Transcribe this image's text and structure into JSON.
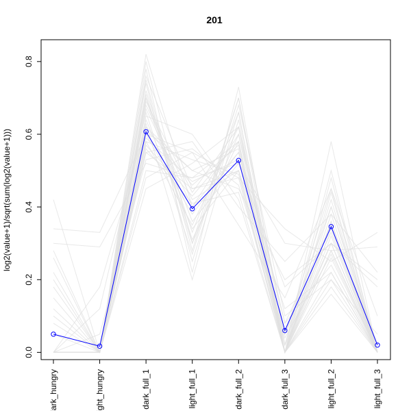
{
  "chart_data": {
    "type": "line",
    "title": "201",
    "xlabel": "",
    "ylabel": "log2(value+1)/sqrt(sum(log2(value+1)))",
    "categories": [
      "dark_hungry",
      "light_hungry",
      "dark_full_1",
      "light_full_1",
      "dark_full_2",
      "dark_full_3",
      "light_full_2",
      "light_full_3"
    ],
    "ylim": [
      -0.02,
      0.86
    ],
    "yticks": [
      0.0,
      0.2,
      0.4,
      0.6,
      0.8
    ],
    "ytick_labels": [
      "0.0",
      "0.2",
      "0.4",
      "0.6",
      "0.8"
    ],
    "highlight_color": "#0000ff",
    "background_color": "#e0e0e0",
    "grid": false,
    "legend": "none",
    "highlight": {
      "values": [
        0.05,
        0.017,
        0.607,
        0.395,
        0.528,
        0.06,
        0.346,
        0.02
      ]
    },
    "background_series": [
      [
        0.0,
        0.0,
        0.55,
        0.45,
        0.5,
        0.0,
        0.3,
        0.0
      ],
      [
        0.42,
        0.0,
        0.7,
        0.3,
        0.6,
        0.0,
        0.2,
        0.0
      ],
      [
        0.34,
        0.33,
        0.6,
        0.55,
        0.48,
        0.34,
        0.25,
        0.33
      ],
      [
        0.3,
        0.29,
        0.52,
        0.48,
        0.52,
        0.3,
        0.28,
        0.29
      ],
      [
        0.2,
        0.0,
        0.75,
        0.28,
        0.7,
        0.05,
        0.45,
        0.0
      ],
      [
        0.0,
        0.0,
        0.82,
        0.4,
        0.55,
        0.0,
        0.18,
        0.0
      ],
      [
        0.0,
        0.0,
        0.65,
        0.6,
        0.42,
        0.0,
        0.4,
        0.0
      ],
      [
        0.28,
        0.0,
        0.58,
        0.35,
        0.62,
        0.08,
        0.35,
        0.0
      ],
      [
        0.0,
        0.18,
        0.62,
        0.5,
        0.45,
        0.2,
        0.3,
        0.18
      ],
      [
        0.15,
        0.0,
        0.78,
        0.22,
        0.73,
        0.02,
        0.5,
        0.0
      ],
      [
        0.0,
        0.0,
        0.5,
        0.48,
        0.58,
        0.0,
        0.58,
        0.0
      ],
      [
        0.1,
        0.0,
        0.68,
        0.42,
        0.5,
        0.12,
        0.22,
        0.0
      ],
      [
        0.0,
        0.0,
        0.72,
        0.33,
        0.66,
        0.0,
        0.26,
        0.0
      ],
      [
        0.22,
        0.0,
        0.55,
        0.58,
        0.4,
        0.25,
        0.38,
        0.22
      ],
      [
        0.0,
        0.0,
        0.45,
        0.52,
        0.62,
        0.02,
        0.42,
        0.0
      ],
      [
        0.05,
        0.0,
        0.6,
        0.38,
        0.55,
        0.05,
        0.33,
        0.0
      ],
      [
        0.0,
        0.12,
        0.66,
        0.27,
        0.68,
        0.1,
        0.2,
        0.05
      ],
      [
        0.0,
        0.0,
        0.76,
        0.45,
        0.48,
        0.0,
        0.48,
        0.0
      ],
      [
        0.18,
        0.0,
        0.48,
        0.55,
        0.35,
        0.15,
        0.45,
        0.1
      ],
      [
        0.0,
        0.0,
        0.63,
        0.2,
        0.64,
        0.0,
        0.36,
        0.0
      ],
      [
        0.0,
        0.0,
        0.57,
        0.43,
        0.58,
        0.0,
        0.16,
        0.0
      ],
      [
        0.26,
        0.0,
        0.7,
        0.36,
        0.52,
        0.18,
        0.3,
        0.2
      ],
      [
        0.0,
        0.0,
        0.8,
        0.3,
        0.7,
        0.0,
        0.28,
        0.0
      ],
      [
        0.0,
        0.05,
        0.53,
        0.56,
        0.46,
        0.05,
        0.4,
        0.02
      ],
      [
        0.12,
        0.0,
        0.67,
        0.4,
        0.6,
        0.08,
        0.24,
        0.0
      ],
      [
        0.0,
        0.0,
        0.59,
        0.47,
        0.53,
        0.0,
        0.34,
        0.0
      ],
      [
        0.0,
        0.0,
        0.74,
        0.25,
        0.66,
        0.0,
        0.44,
        0.0
      ],
      [
        0.0,
        0.0,
        0.61,
        0.5,
        0.56,
        0.02,
        0.3,
        0.0
      ],
      [
        0.08,
        0.0,
        0.64,
        0.34,
        0.5,
        0.04,
        0.27,
        0.0
      ],
      [
        0.0,
        0.0,
        0.69,
        0.44,
        0.62,
        0.0,
        0.38,
        0.0
      ],
      [
        0.0,
        0.0,
        0.56,
        0.41,
        0.44,
        0.0,
        0.22,
        0.0
      ],
      [
        0.0,
        0.0,
        0.71,
        0.31,
        0.58,
        0.0,
        0.32,
        0.0
      ],
      [
        0.0,
        0.0,
        0.58,
        0.53,
        0.49,
        0.0,
        0.28,
        0.0
      ],
      [
        0.0,
        0.0,
        0.62,
        0.46,
        0.57,
        0.0,
        0.36,
        0.0
      ]
    ]
  }
}
